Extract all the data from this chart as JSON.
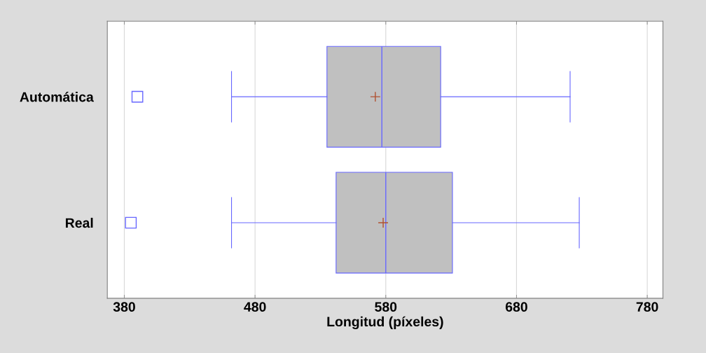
{
  "chart_data": {
    "type": "box",
    "orientation": "horizontal",
    "categories": [
      "Automática",
      "Real"
    ],
    "boxes": [
      {
        "low": 462,
        "q1": 535,
        "median": 577,
        "q3": 622,
        "high": 721,
        "mean": 572,
        "outliers": [
          390
        ]
      },
      {
        "low": 462,
        "q1": 542,
        "median": 580,
        "q3": 631,
        "high": 728,
        "mean": 578,
        "outliers": [
          385
        ]
      }
    ],
    "xlabel": "Longitud (píxeles)",
    "xlim": [
      367,
      792
    ],
    "xticks": [
      380,
      480,
      580,
      680,
      780
    ],
    "grid": "x",
    "color": "#c0c0c0"
  }
}
